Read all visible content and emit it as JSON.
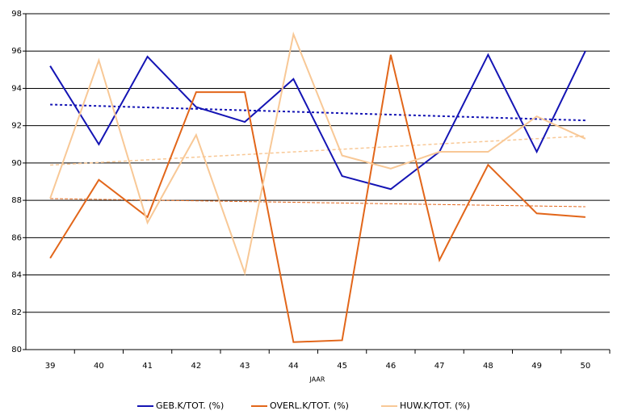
{
  "chart_data": {
    "type": "line",
    "x_label": "JAAR",
    "categories": [
      "39",
      "40",
      "41",
      "42",
      "43",
      "44",
      "45",
      "46",
      "47",
      "48",
      "49",
      "50"
    ],
    "series": [
      {
        "name": "GEB.K/TOT. (%)",
        "color": "#1414b4",
        "trendline": true,
        "values": [
          95.2,
          91.0,
          95.7,
          93.0,
          92.2,
          94.5,
          89.3,
          88.6,
          90.6,
          95.8,
          90.6,
          96.0
        ]
      },
      {
        "name": "OVERL.K/TOT. (%)",
        "color": "#e2661a",
        "trendline": true,
        "values": [
          84.9,
          89.1,
          87.1,
          93.8,
          93.8,
          80.4,
          80.5,
          95.8,
          84.8,
          89.9,
          87.3,
          87.1
        ]
      },
      {
        "name": "HUW.K/TOT. (%)",
        "color": "#f8c896",
        "trendline": true,
        "values": [
          88.1,
          95.5,
          86.8,
          91.5,
          84.1,
          96.9,
          90.4,
          89.7,
          90.6,
          90.6,
          92.5,
          91.3
        ]
      }
    ],
    "ylim": [
      80,
      98
    ],
    "yticks": [
      80,
      82,
      84,
      86,
      88,
      90,
      92,
      94,
      96,
      98
    ],
    "grid": true
  }
}
